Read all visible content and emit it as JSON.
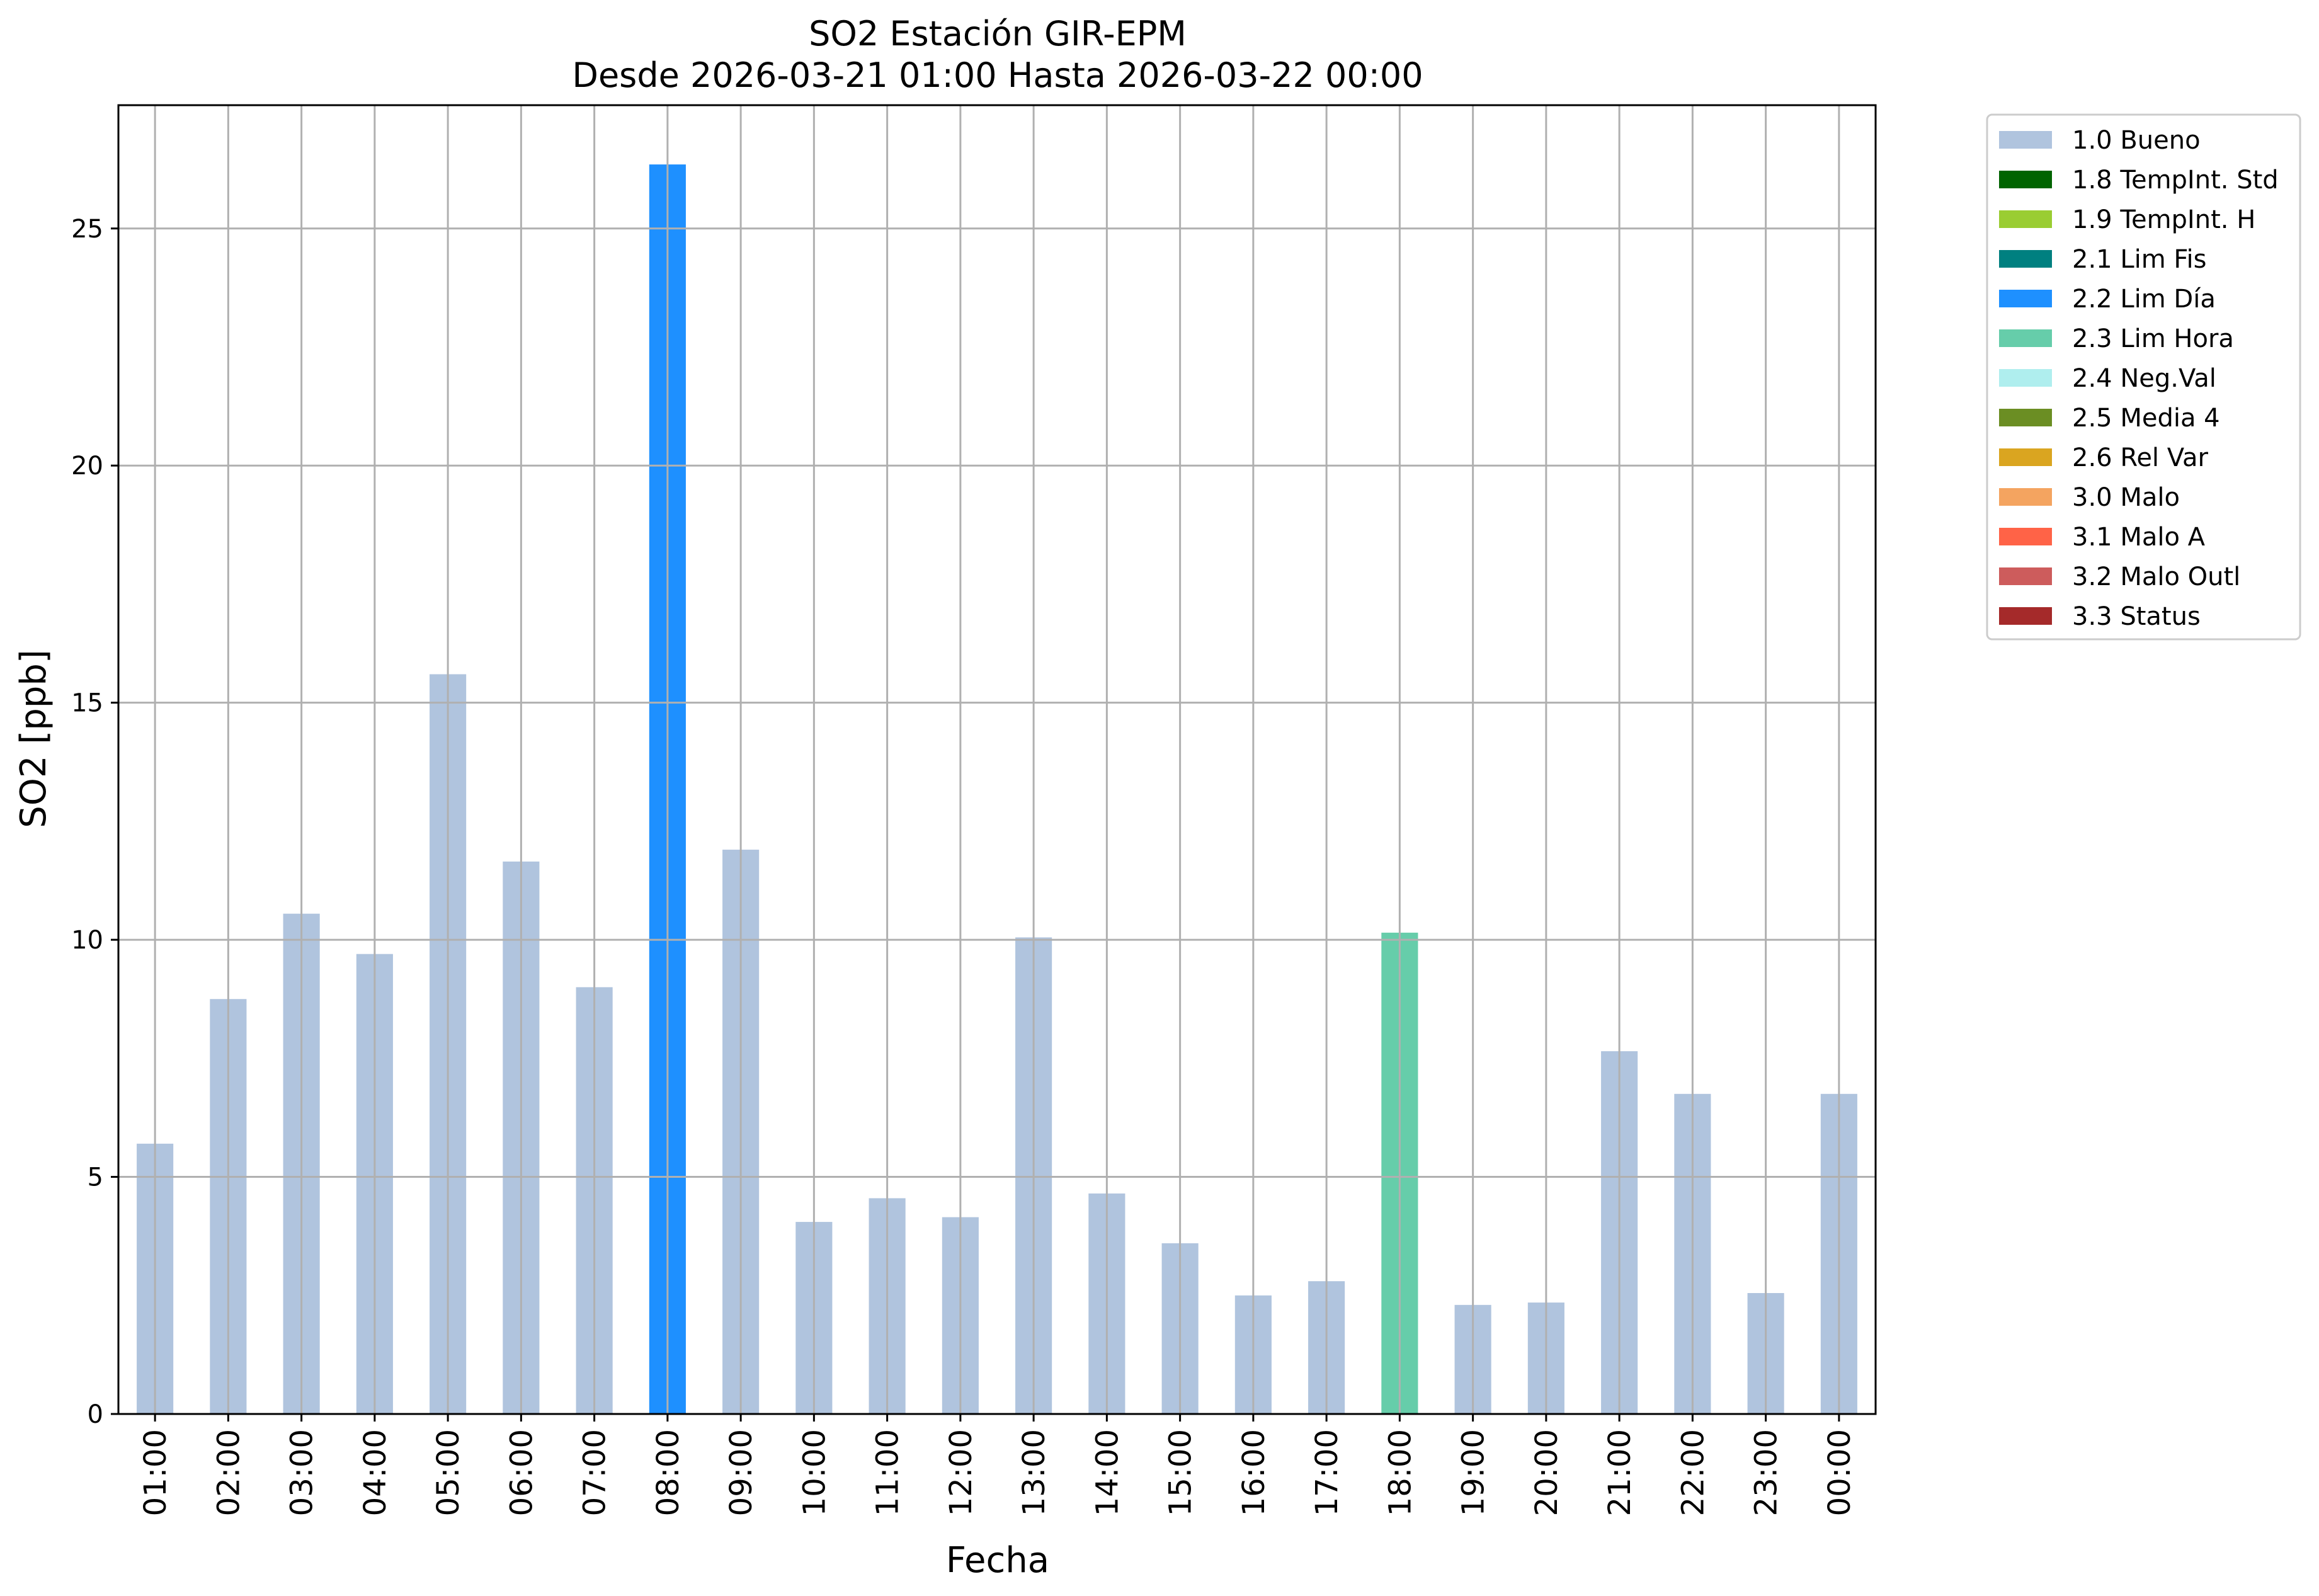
{
  "chart_data": {
    "type": "bar",
    "title": "SO2 Estación GIR-EPM",
    "subtitle": "Desde 2026-03-21 01:00 Hasta 2026-03-22 00:00",
    "xlabel": "Fecha",
    "ylabel": "SO2 [ppb]",
    "ylim": [
      0,
      27.6
    ],
    "yticks": [
      0,
      5,
      10,
      15,
      20,
      25
    ],
    "grid": true,
    "legend_position": "outside-right",
    "categories": [
      "01:00",
      "02:00",
      "03:00",
      "04:00",
      "05:00",
      "06:00",
      "07:00",
      "08:00",
      "09:00",
      "10:00",
      "11:00",
      "12:00",
      "13:00",
      "14:00",
      "15:00",
      "16:00",
      "17:00",
      "18:00",
      "19:00",
      "20:00",
      "21:00",
      "22:00",
      "23:00",
      "00:00"
    ],
    "values": [
      5.7,
      8.75,
      10.55,
      9.7,
      15.6,
      11.65,
      9.0,
      26.35,
      11.9,
      4.05,
      4.55,
      4.15,
      10.05,
      4.65,
      3.6,
      2.5,
      2.8,
      10.15,
      2.3,
      2.35,
      7.65,
      6.75,
      2.55,
      6.75
    ],
    "flags": [
      "1.0 Bueno",
      "1.0 Bueno",
      "1.0 Bueno",
      "1.0 Bueno",
      "1.0 Bueno",
      "1.0 Bueno",
      "1.0 Bueno",
      "2.2 Lim Día",
      "1.0 Bueno",
      "1.0 Bueno",
      "1.0 Bueno",
      "1.0 Bueno",
      "1.0 Bueno",
      "1.0 Bueno",
      "1.0 Bueno",
      "1.0 Bueno",
      "1.0 Bueno",
      "2.3 Lim Hora",
      "1.0 Bueno",
      "1.0 Bueno",
      "1.0 Bueno",
      "1.0 Bueno",
      "1.0 Bueno",
      "1.0 Bueno"
    ],
    "legend": [
      {
        "label": "1.0 Bueno",
        "color": "#b0c4de"
      },
      {
        "label": "1.8 TempInt. Std",
        "color": "#006400"
      },
      {
        "label": "1.9 TempInt. H",
        "color": "#9acd32"
      },
      {
        "label": "2.1 Lim Fis",
        "color": "#008080"
      },
      {
        "label": "2.2 Lim Día",
        "color": "#1e90ff"
      },
      {
        "label": "2.3 Lim Hora",
        "color": "#66cdaa"
      },
      {
        "label": "2.4 Neg.Val",
        "color": "#afeeee"
      },
      {
        "label": "2.5 Media 4",
        "color": "#6b8e23"
      },
      {
        "label": "2.6 Rel Var",
        "color": "#daa520"
      },
      {
        "label": "3.0 Malo",
        "color": "#f4a460"
      },
      {
        "label": "3.1 Malo A",
        "color": "#ff6347"
      },
      {
        "label": "3.2 Malo Outl",
        "color": "#cd5c5c"
      },
      {
        "label": "3.3 Status",
        "color": "#a52a2a"
      }
    ]
  }
}
